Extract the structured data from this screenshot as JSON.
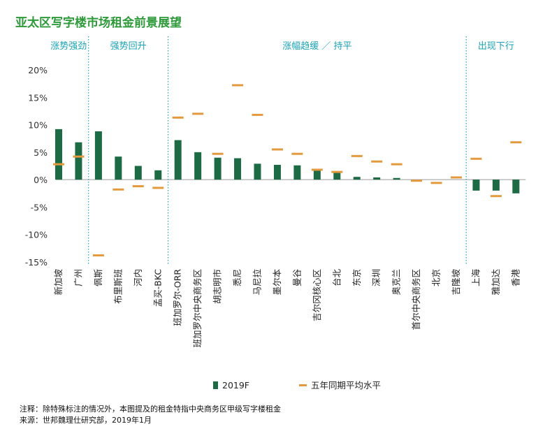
{
  "title": "亚太区写字楼市场租金前景展望",
  "footnote": "注释：除特殊标注的情况外，本图提及的租金特指中央商务区甲级写字楼租金",
  "source": "来源：世邦魏理仕研究部，2019年1月",
  "colors": {
    "bar": "#1d6b45",
    "marker": "#e39a3e",
    "group_label": "#1aa3b5",
    "title": "#2e9a3a",
    "divider": "#1aa3b5"
  },
  "chart_data": {
    "type": "bar",
    "title": "亚太区写字楼市场租金前景展望",
    "ylim": [
      -15,
      20
    ],
    "yticks": [
      20,
      15,
      10,
      5,
      0,
      -5,
      -10,
      -15
    ],
    "ytick_labels": [
      "20%",
      "15%",
      "10%",
      "5%",
      "0%",
      "-5%",
      "-10%",
      "-15%"
    ],
    "grid": false,
    "legend_position": "bottom",
    "categories": [
      "新加坡",
      "广州",
      "佩斯",
      "布里斯班",
      "河内",
      "孟买-BKC",
      "班加罗尔-ORR",
      "班加罗尔中央商务区",
      "胡志明市",
      "悉尼",
      "马尼拉",
      "墨尔本",
      "曼谷",
      "吉尔冈核心区",
      "台北",
      "东京",
      "深圳",
      "奥克兰",
      "首尔中央商务区",
      "北京",
      "吉隆坡",
      "上海",
      "雅加达",
      "香港"
    ],
    "series": [
      {
        "name": "2019F",
        "type": "bar",
        "values": [
          9.2,
          6.8,
          8.8,
          4.2,
          2.5,
          1.7,
          7.2,
          5.0,
          4.0,
          3.9,
          2.9,
          2.7,
          2.6,
          1.8,
          1.3,
          0.5,
          0.4,
          0.3,
          0,
          0,
          0,
          -2.0,
          -2.0,
          -2.5
        ]
      },
      {
        "name": "五年同期平均水平",
        "type": "marker",
        "values": [
          2.8,
          4.2,
          -13.8,
          -1.8,
          -1.2,
          -1.5,
          11.3,
          12.0,
          4.7,
          17.2,
          11.8,
          5.5,
          4.7,
          1.8,
          1.4,
          4.3,
          3.3,
          2.8,
          -0.2,
          -0.6,
          0.4,
          3.8,
          -3.0,
          6.8
        ]
      }
    ],
    "groups": [
      {
        "label": "涨势强劲",
        "start": 0,
        "end": 1
      },
      {
        "label": "强势回升",
        "start": 2,
        "end": 5
      },
      {
        "label": "涨幅趋缓 ／ 持平",
        "start": 6,
        "end": 20
      },
      {
        "label": "出现下行",
        "start": 21,
        "end": 23
      }
    ]
  }
}
